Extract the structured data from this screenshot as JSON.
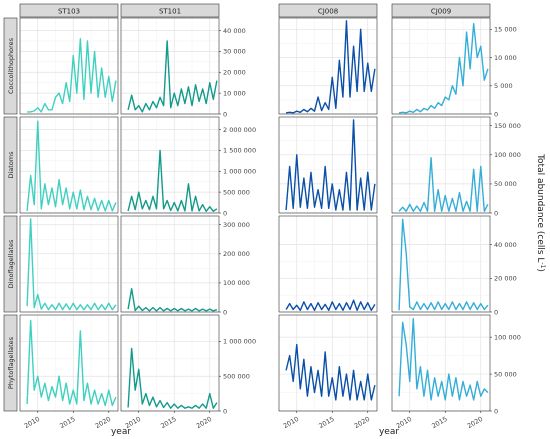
{
  "chart_data": {
    "type": "line",
    "title": "",
    "xlabel": "year",
    "ylabel": "Total abundance (cells L",
    "ylabel_sup": "-1",
    "ylabel_close": ")",
    "x_ticks": [
      2010,
      2015,
      2020
    ],
    "x_tick_labels": [
      "2010",
      "2015",
      "2020"
    ],
    "xlim": [
      2007.5,
      2021.3
    ],
    "stations": [
      "ST103",
      "ST101",
      "CJ008",
      "CJ009"
    ],
    "groups": [
      "Coccolithophores",
      "Diatoms",
      "Dinoflagellates",
      "Phytoflagellates"
    ],
    "colors": {
      "ST103": "#40d0c0",
      "ST101": "#129a8a",
      "CJ008": "#0a4fa8",
      "CJ009": "#34aed8"
    },
    "rows": [
      {
        "group": "Coccolithophores",
        "left": {
          "ylim": [
            0,
            46000
          ],
          "ticks": [
            0,
            10000,
            20000,
            30000,
            40000
          ],
          "tick_labels": [
            "0",
            "10 000",
            "20 000",
            "30 000",
            "40 000"
          ]
        },
        "right": {
          "ylim": [
            0,
            17000
          ],
          "ticks": [
            0,
            5000,
            10000,
            15000
          ],
          "tick_labels": [
            "0",
            "5 000",
            "10 000",
            "15 000"
          ]
        }
      },
      {
        "group": "Diatoms",
        "left": {
          "ylim": [
            0,
            2300000
          ],
          "ticks": [
            0,
            500000,
            1000000,
            1500000,
            2000000
          ],
          "tick_labels": [
            "0",
            "500 000",
            "1 000 000",
            "1 500 000",
            "2 000 000"
          ]
        },
        "right": {
          "ylim": [
            0,
            165000
          ],
          "ticks": [
            0,
            50000,
            100000,
            150000
          ],
          "tick_labels": [
            "0",
            "50 000",
            "100 000",
            "150 000"
          ]
        }
      },
      {
        "group": "Dinoflagellates",
        "left": {
          "ylim": [
            0,
            330000
          ],
          "ticks": [
            0,
            100000,
            200000,
            300000
          ],
          "tick_labels": [
            "0",
            "100 000",
            "200 000",
            "300 000"
          ]
        },
        "right": {
          "ylim": [
            0,
            57000
          ],
          "ticks": [
            0,
            20000,
            40000
          ],
          "tick_labels": [
            "0",
            "20 000",
            "40 000"
          ]
        }
      },
      {
        "group": "Phytoflagellates",
        "left": {
          "ylim": [
            0,
            1380000
          ],
          "ticks": [
            0,
            500000,
            1000000
          ],
          "tick_labels": [
            "0",
            "500 000",
            "1 000 000"
          ]
        },
        "right": {
          "ylim": [
            0,
            130000
          ],
          "ticks": [
            0,
            50000,
            100000
          ],
          "tick_labels": [
            "0",
            "50 000",
            "100 000"
          ]
        }
      }
    ],
    "series": [
      {
        "station": "ST103",
        "group": "Coccolithophores",
        "x": [
          2008.5,
          2009,
          2009.5,
          2010,
          2010.5,
          2011,
          2011.5,
          2012,
          2012.5,
          2013,
          2013.5,
          2014,
          2014.5,
          2015,
          2015.5,
          2016,
          2016.5,
          2017,
          2017.5,
          2018,
          2018.5,
          2019,
          2019.5,
          2020,
          2020.5,
          2021
        ],
        "values": [
          1000,
          1000,
          1500,
          3000,
          1000,
          5000,
          2000,
          2000,
          8000,
          10000,
          5000,
          15000,
          6000,
          28000,
          10000,
          36000,
          7000,
          35000,
          10000,
          30000,
          8000,
          22000,
          8000,
          18000,
          6000,
          16000
        ]
      },
      {
        "station": "ST101",
        "group": "Coccolithophores",
        "x": [
          2008.5,
          2009,
          2009.5,
          2010,
          2010.5,
          2011,
          2011.5,
          2012,
          2012.5,
          2013,
          2013.5,
          2014,
          2014.5,
          2015,
          2015.5,
          2016,
          2016.5,
          2017,
          2017.5,
          2018,
          2018.5,
          2019,
          2019.5,
          2020,
          2020.5,
          2021
        ],
        "values": [
          2000,
          9000,
          2000,
          4000,
          1000,
          5000,
          2000,
          6000,
          3000,
          8000,
          4000,
          35000,
          3000,
          10000,
          4000,
          12000,
          5000,
          13000,
          4000,
          14000,
          6000,
          12000,
          5000,
          15000,
          7000,
          16000
        ]
      },
      {
        "station": "CJ008",
        "group": "Coccolithophores",
        "x": [
          2008.5,
          2009,
          2009.5,
          2010,
          2010.5,
          2011,
          2011.5,
          2012,
          2012.5,
          2013,
          2013.5,
          2014,
          2014.5,
          2015,
          2015.5,
          2016,
          2016.5,
          2017,
          2017.5,
          2018,
          2018.5,
          2019,
          2019.5,
          2020,
          2020.5,
          2021
        ],
        "values": [
          200,
          300,
          200,
          500,
          300,
          800,
          400,
          1000,
          500,
          3000,
          600,
          2000,
          800,
          6500,
          1000,
          9500,
          3000,
          16500,
          3000,
          12000,
          4000,
          15000,
          4000,
          9000,
          4000,
          8000
        ]
      },
      {
        "station": "CJ009",
        "group": "Coccolithophores",
        "x": [
          2008.5,
          2009,
          2009.5,
          2010,
          2010.5,
          2011,
          2011.5,
          2012,
          2012.5,
          2013,
          2013.5,
          2014,
          2014.5,
          2015,
          2015.5,
          2016,
          2016.5,
          2017,
          2017.5,
          2018,
          2018.5,
          2019,
          2019.5,
          2020,
          2020.5,
          2021
        ],
        "values": [
          200,
          300,
          200,
          500,
          300,
          800,
          400,
          1000,
          700,
          1500,
          1000,
          2000,
          1500,
          3000,
          2500,
          5000,
          3500,
          10000,
          5000,
          14500,
          8000,
          16000,
          10000,
          12000,
          6000,
          8000
        ]
      },
      {
        "station": "ST103",
        "group": "Diatoms",
        "x": [
          2008.5,
          2009,
          2009.5,
          2010,
          2010.5,
          2011,
          2011.5,
          2012,
          2012.5,
          2013,
          2013.5,
          2014,
          2014.5,
          2015,
          2015.5,
          2016,
          2016.5,
          2017,
          2017.5,
          2018,
          2018.5,
          2019,
          2019.5,
          2020,
          2020.5,
          2021
        ],
        "values": [
          50000,
          900000,
          200000,
          2200000,
          100000,
          700000,
          200000,
          600000,
          150000,
          800000,
          200000,
          600000,
          100000,
          500000,
          100000,
          550000,
          80000,
          400000,
          80000,
          350000,
          60000,
          300000,
          50000,
          300000,
          50000,
          250000
        ]
      },
      {
        "station": "ST101",
        "group": "Diatoms",
        "x": [
          2008.5,
          2009,
          2009.5,
          2010,
          2010.5,
          2011,
          2011.5,
          2012,
          2012.5,
          2013,
          2013.5,
          2014,
          2014.5,
          2015,
          2015.5,
          2016,
          2016.5,
          2017,
          2017.5,
          2018,
          2018.5,
          2019,
          2019.5,
          2020,
          2020.5,
          2021
        ],
        "values": [
          50000,
          400000,
          80000,
          500000,
          100000,
          300000,
          80000,
          400000,
          100000,
          1500000,
          100000,
          300000,
          60000,
          250000,
          50000,
          300000,
          50000,
          700000,
          50000,
          400000,
          50000,
          200000,
          40000,
          150000,
          40000,
          100000
        ]
      },
      {
        "station": "CJ008",
        "group": "Diatoms",
        "x": [
          2008.5,
          2009,
          2009.5,
          2010,
          2010.5,
          2011,
          2011.5,
          2012,
          2012.5,
          2013,
          2013.5,
          2014,
          2014.5,
          2015,
          2015.5,
          2016,
          2016.5,
          2017,
          2017.5,
          2018,
          2018.5,
          2019,
          2019.5,
          2020,
          2020.5,
          2021
        ],
        "values": [
          5000,
          80000,
          8000,
          100000,
          10000,
          60000,
          8000,
          70000,
          10000,
          40000,
          8000,
          80000,
          8000,
          50000,
          5000,
          40000,
          5000,
          70000,
          5000,
          160000,
          5000,
          60000,
          5000,
          70000,
          5000,
          50000
        ]
      },
      {
        "station": "CJ009",
        "group": "Diatoms",
        "x": [
          2008.5,
          2009,
          2009.5,
          2010,
          2010.5,
          2011,
          2011.5,
          2012,
          2012.5,
          2013,
          2013.5,
          2014,
          2014.5,
          2015,
          2015.5,
          2016,
          2016.5,
          2017,
          2017.5,
          2018,
          2018.5,
          2019,
          2019.5,
          2020,
          2020.5,
          2021
        ],
        "values": [
          3000,
          10000,
          3000,
          15000,
          3000,
          12000,
          3000,
          18000,
          3000,
          95000,
          3000,
          40000,
          3000,
          30000,
          3000,
          25000,
          3000,
          35000,
          3000,
          20000,
          3000,
          75000,
          3000,
          80000,
          3000,
          15000
        ]
      },
      {
        "station": "ST103",
        "group": "Dinoflagellates",
        "x": [
          2008.5,
          2009,
          2009.5,
          2010,
          2010.5,
          2011,
          2011.5,
          2012,
          2012.5,
          2013,
          2013.5,
          2014,
          2014.5,
          2015,
          2015.5,
          2016,
          2016.5,
          2017,
          2017.5,
          2018,
          2018.5,
          2019,
          2019.5,
          2020,
          2020.5,
          2021
        ],
        "values": [
          20000,
          320000,
          15000,
          60000,
          10000,
          30000,
          8000,
          25000,
          8000,
          30000,
          8000,
          28000,
          8000,
          30000,
          8000,
          25000,
          8000,
          25000,
          8000,
          30000,
          8000,
          25000,
          8000,
          30000,
          8000,
          25000
        ]
      },
      {
        "station": "ST101",
        "group": "Dinoflagellates",
        "x": [
          2008.5,
          2009,
          2009.5,
          2010,
          2010.5,
          2011,
          2011.5,
          2012,
          2012.5,
          2013,
          2013.5,
          2014,
          2014.5,
          2015,
          2015.5,
          2016,
          2016.5,
          2017,
          2017.5,
          2018,
          2018.5,
          2019,
          2019.5,
          2020,
          2020.5,
          2021
        ],
        "values": [
          10000,
          80000,
          5000,
          20000,
          5000,
          15000,
          4000,
          15000,
          4000,
          15000,
          4000,
          12000,
          4000,
          12000,
          4000,
          12000,
          4000,
          10000,
          4000,
          12000,
          4000,
          10000,
          4000,
          10000,
          4000,
          8000
        ]
      },
      {
        "station": "CJ008",
        "group": "Dinoflagellates",
        "x": [
          2008.5,
          2009,
          2009.5,
          2010,
          2010.5,
          2011,
          2011.5,
          2012,
          2012.5,
          2013,
          2013.5,
          2014,
          2014.5,
          2015,
          2015.5,
          2016,
          2016.5,
          2017,
          2017.5,
          2018,
          2018.5,
          2019,
          2019.5,
          2020,
          2020.5,
          2021
        ],
        "values": [
          1500,
          5000,
          1500,
          4000,
          1000,
          6000,
          1500,
          5000,
          1000,
          5500,
          1500,
          4500,
          1000,
          6000,
          1500,
          5000,
          1000,
          5500,
          1500,
          7000,
          1000,
          6000,
          1500,
          5500,
          1000,
          4500
        ]
      },
      {
        "station": "CJ009",
        "group": "Dinoflagellates",
        "x": [
          2008.5,
          2009,
          2009.5,
          2010,
          2010.5,
          2011,
          2011.5,
          2012,
          2012.5,
          2013,
          2013.5,
          2014,
          2014.5,
          2015,
          2015.5,
          2016,
          2016.5,
          2017,
          2017.5,
          2018,
          2018.5,
          2019,
          2019.5,
          2020,
          2020.5,
          2021
        ],
        "values": [
          1000,
          55000,
          35000,
          3000,
          1500,
          6000,
          1500,
          5000,
          1500,
          5500,
          1500,
          6000,
          1500,
          5000,
          1500,
          6000,
          1500,
          5000,
          1500,
          6000,
          1500,
          5500,
          1500,
          5000,
          1500,
          4000
        ]
      },
      {
        "station": "ST103",
        "group": "Phytoflagellates",
        "x": [
          2008.5,
          2009,
          2009.5,
          2010,
          2010.5,
          2011,
          2011.5,
          2012,
          2012.5,
          2013,
          2013.5,
          2014,
          2014.5,
          2015,
          2015.5,
          2016,
          2016.5,
          2017,
          2017.5,
          2018,
          2018.5,
          2019,
          2019.5,
          2020,
          2020.5,
          2021
        ],
        "values": [
          100000,
          1300000,
          300000,
          500000,
          200000,
          400000,
          150000,
          350000,
          200000,
          500000,
          150000,
          400000,
          100000,
          300000,
          100000,
          1150000,
          150000,
          400000,
          100000,
          300000,
          100000,
          250000,
          80000,
          300000,
          80000,
          200000
        ]
      },
      {
        "station": "ST101",
        "group": "Phytoflagellates",
        "x": [
          2008.5,
          2009,
          2009.5,
          2010,
          2010.5,
          2011,
          2011.5,
          2012,
          2012.5,
          2013,
          2013.5,
          2014,
          2014.5,
          2015,
          2015.5,
          2016,
          2016.5,
          2017,
          2017.5,
          2018,
          2018.5,
          2019,
          2019.5,
          2020,
          2020.5,
          2021
        ],
        "values": [
          50000,
          900000,
          300000,
          600000,
          100000,
          250000,
          80000,
          200000,
          60000,
          150000,
          50000,
          120000,
          40000,
          100000,
          40000,
          80000,
          40000,
          60000,
          40000,
          80000,
          40000,
          100000,
          40000,
          250000,
          40000,
          120000
        ]
      },
      {
        "station": "CJ008",
        "group": "Phytoflagellates",
        "x": [
          2008.5,
          2009,
          2009.5,
          2010,
          2010.5,
          2011,
          2011.5,
          2012,
          2012.5,
          2013,
          2013.5,
          2014,
          2014.5,
          2015,
          2015.5,
          2016,
          2016.5,
          2017,
          2017.5,
          2018,
          2018.5,
          2019,
          2019.5,
          2020,
          2020.5,
          2021
        ],
        "values": [
          55000,
          75000,
          40000,
          90000,
          30000,
          70000,
          20000,
          60000,
          25000,
          55000,
          20000,
          80000,
          20000,
          45000,
          15000,
          60000,
          20000,
          50000,
          15000,
          55000,
          15000,
          40000,
          15000,
          50000,
          15000,
          35000
        ]
      },
      {
        "station": "CJ009",
        "group": "Phytoflagellates",
        "x": [
          2008.5,
          2009,
          2009.5,
          2010,
          2010.5,
          2011,
          2011.5,
          2012,
          2012.5,
          2013,
          2013.5,
          2014,
          2014.5,
          2015,
          2015.5,
          2016,
          2016.5,
          2017,
          2017.5,
          2018,
          2018.5,
          2019,
          2019.5,
          2020,
          2020.5,
          2021
        ],
        "values": [
          20000,
          120000,
          90000,
          40000,
          125000,
          30000,
          60000,
          20000,
          55000,
          15000,
          45000,
          20000,
          40000,
          15000,
          50000,
          20000,
          45000,
          15000,
          40000,
          20000,
          35000,
          15000,
          40000,
          20000,
          30000,
          25000
        ]
      }
    ],
    "grid": true
  }
}
